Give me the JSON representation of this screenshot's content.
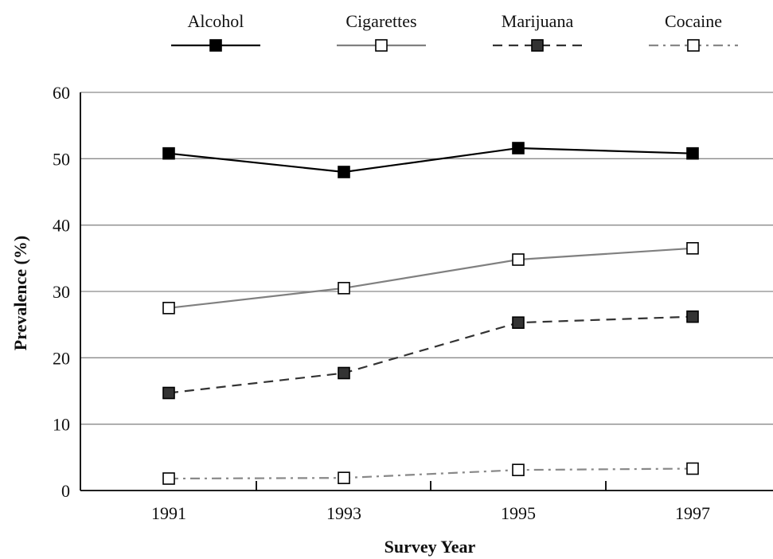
{
  "chart_data": {
    "type": "line",
    "xlabel": "Survey Year",
    "ylabel": "Prevalence (%)",
    "x": [
      1991,
      1993,
      1995,
      1997
    ],
    "x_tick_labels": [
      "1991",
      "1993",
      "1995",
      "1997"
    ],
    "ylim": [
      0,
      60
    ],
    "y_ticks": [
      0,
      10,
      20,
      30,
      40,
      50,
      60
    ],
    "y_tick_labels": [
      "0",
      "10",
      "20",
      "30",
      "40",
      "50",
      "60"
    ],
    "grid": "horizontal",
    "legend_position": "top",
    "series": [
      {
        "name": "Alcohol",
        "values": [
          50.8,
          48.0,
          51.6,
          50.8
        ],
        "color": "#000000",
        "line_style": "solid",
        "marker": "filled-square",
        "marker_fill": "#000000"
      },
      {
        "name": "Cigarettes",
        "values": [
          27.5,
          30.5,
          34.8,
          36.5
        ],
        "color": "#808080",
        "line_style": "solid",
        "marker": "open-square",
        "marker_fill": "#ffffff"
      },
      {
        "name": "Marijuana",
        "values": [
          14.7,
          17.7,
          25.3,
          26.2
        ],
        "color": "#333333",
        "line_style": "dashed",
        "marker": "filled-square",
        "marker_fill": "#333333"
      },
      {
        "name": "Cocaine",
        "values": [
          1.8,
          1.9,
          3.1,
          3.3
        ],
        "color": "#888888",
        "line_style": "dash-dot",
        "marker": "open-square",
        "marker_fill": "#ffffff"
      }
    ]
  }
}
